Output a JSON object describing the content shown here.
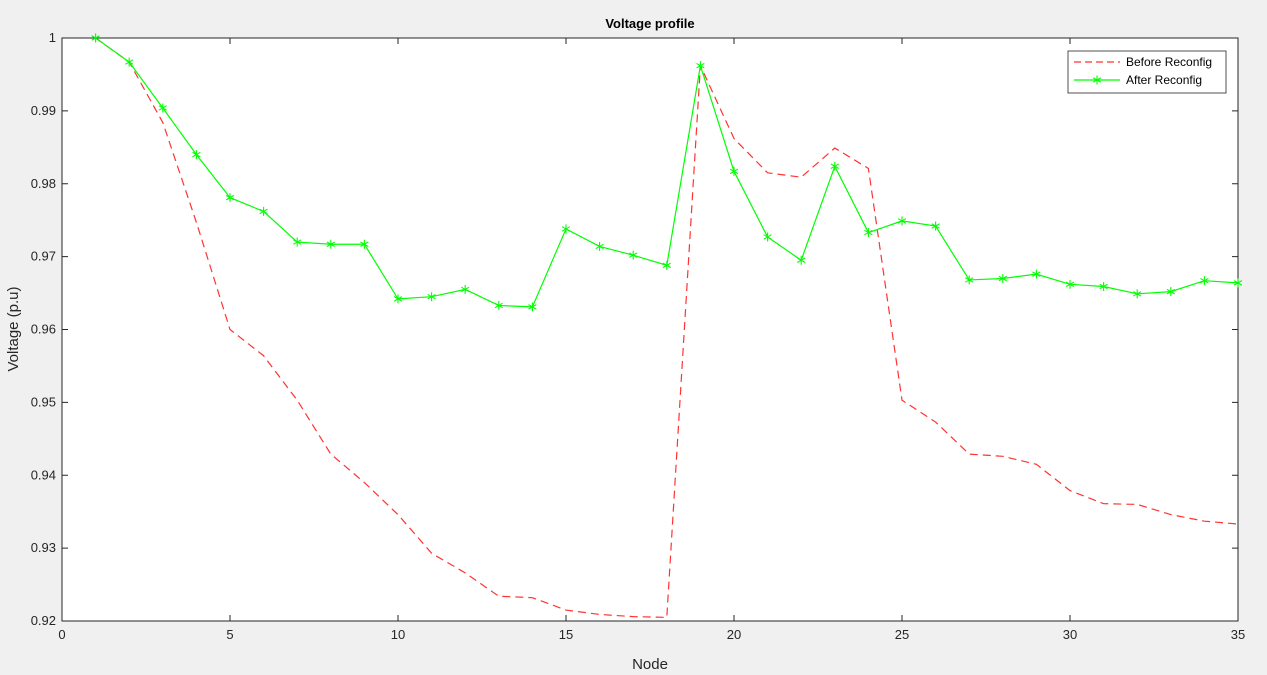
{
  "chart_data": {
    "type": "line",
    "title": "Voltage profile",
    "xlabel": "Node",
    "ylabel": "Voltage (p.u)",
    "xlim": [
      0,
      35
    ],
    "ylim": [
      0.92,
      1.0
    ],
    "xticks": [
      0,
      5,
      10,
      15,
      20,
      25,
      30,
      35
    ],
    "yticks": [
      0.92,
      0.93,
      0.94,
      0.95,
      0.96,
      0.97,
      0.98,
      0.99,
      1
    ],
    "grid": false,
    "legend_position": "top-right",
    "x": [
      1,
      2,
      3,
      4,
      5,
      6,
      7,
      8,
      9,
      10,
      11,
      12,
      13,
      14,
      15,
      16,
      17,
      18,
      19,
      20,
      21,
      22,
      23,
      24,
      25,
      26,
      27,
      28,
      29,
      30,
      31,
      32,
      33,
      34,
      35
    ],
    "series": [
      {
        "name": "Before Reconfig",
        "color": "#ff3333",
        "style": "dashed",
        "marker": "none",
        "values": [
          1.0,
          0.9967,
          0.9884,
          0.9747,
          0.96,
          0.9564,
          0.9503,
          0.9429,
          0.939,
          0.9346,
          0.9293,
          0.9266,
          0.9234,
          0.9232,
          0.9215,
          0.9209,
          0.9206,
          0.9205,
          0.9962,
          0.9862,
          0.9815,
          0.9809,
          0.9849,
          0.9821,
          0.9503,
          0.9473,
          0.9429,
          0.9426,
          0.9415,
          0.9379,
          0.9361,
          0.936,
          0.9346,
          0.9337,
          0.9333
        ]
      },
      {
        "name": "After Reconfig",
        "color": "#00ff00",
        "style": "solid",
        "marker": "asterisk",
        "values": [
          1.0,
          0.9967,
          0.9904,
          0.984,
          0.9781,
          0.9762,
          0.972,
          0.9717,
          0.9717,
          0.9642,
          0.9645,
          0.9655,
          0.9633,
          0.9631,
          0.9738,
          0.9714,
          0.9702,
          0.9688,
          0.9962,
          0.9817,
          0.9727,
          0.9695,
          0.9824,
          0.9733,
          0.9749,
          0.9742,
          0.9668,
          0.967,
          0.9676,
          0.9662,
          0.9659,
          0.9649,
          0.9652,
          0.9667,
          0.9664
        ]
      }
    ]
  }
}
